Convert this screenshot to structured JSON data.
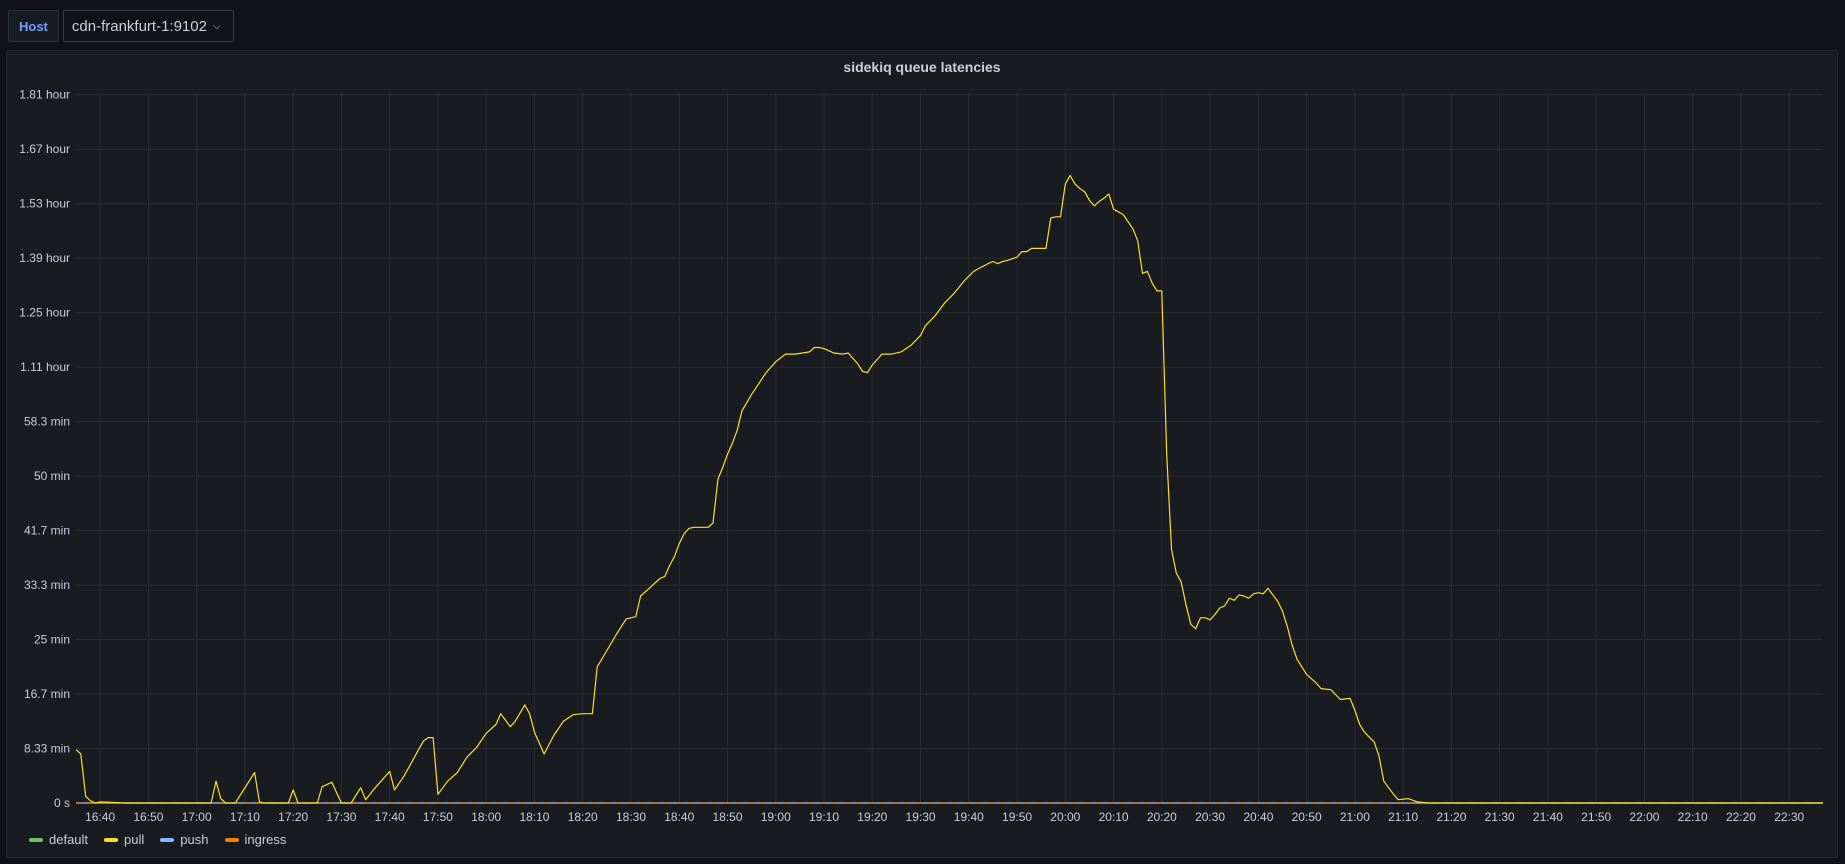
{
  "variables": {
    "label": "Host",
    "value": "cdn-frankfurt-1:9102"
  },
  "panel": {
    "title": "sidekiq queue latencies"
  },
  "legend": [
    {
      "name": "default",
      "color": "#73bf69"
    },
    {
      "name": "pull",
      "color": "#fade2a"
    },
    {
      "name": "push",
      "color": "#8ab8ff"
    },
    {
      "name": "ingress",
      "color": "#ff780a"
    }
  ],
  "chart_data": {
    "type": "line",
    "x_unit": "time (HH:MM)",
    "xlim": [
      "16:35",
      "22:37"
    ],
    "y_unit": "seconds",
    "ylim": [
      0,
      6516
    ],
    "yticks": [
      {
        "value": 0,
        "label": "0 s"
      },
      {
        "value": 500,
        "label": "8.33 min"
      },
      {
        "value": 1000,
        "label": "16.7 min"
      },
      {
        "value": 1500,
        "label": "25 min"
      },
      {
        "value": 2000,
        "label": "33.3 min"
      },
      {
        "value": 2500,
        "label": "41.7 min"
      },
      {
        "value": 3000,
        "label": "50 min"
      },
      {
        "value": 3500,
        "label": "58.3 min"
      },
      {
        "value": 4000,
        "label": "1.11 hour"
      },
      {
        "value": 4500,
        "label": "1.25 hour"
      },
      {
        "value": 5000,
        "label": "1.39 hour"
      },
      {
        "value": 5500,
        "label": "1.53 hour"
      },
      {
        "value": 6000,
        "label": "1.67 hour"
      },
      {
        "value": 6500,
        "label": "1.81 hour"
      }
    ],
    "xticks": [
      "16:40",
      "16:50",
      "17:00",
      "17:10",
      "17:20",
      "17:30",
      "17:40",
      "17:50",
      "18:00",
      "18:10",
      "18:20",
      "18:30",
      "18:40",
      "18:50",
      "19:00",
      "19:10",
      "19:20",
      "19:30",
      "19:40",
      "19:50",
      "20:00",
      "20:10",
      "20:20",
      "20:30",
      "20:40",
      "20:50",
      "21:00",
      "21:10",
      "21:20",
      "21:30",
      "21:40",
      "21:50",
      "22:00",
      "22:10",
      "22:20",
      "22:30"
    ],
    "grid": true,
    "legend_position": "bottom-left",
    "series": [
      {
        "name": "pull",
        "color": "#fade2a",
        "points": [
          [
            "16:35",
            490
          ],
          [
            "16:36",
            450
          ],
          [
            "16:37",
            60
          ],
          [
            "16:38",
            20
          ],
          [
            "16:39",
            0
          ],
          [
            "16:40",
            10
          ],
          [
            "16:45",
            0
          ],
          [
            "16:55",
            0
          ],
          [
            "17:03",
            0
          ],
          [
            "17:04",
            200
          ],
          [
            "17:05",
            40
          ],
          [
            "17:06",
            0
          ],
          [
            "17:08",
            0
          ],
          [
            "17:12",
            280
          ],
          [
            "17:13",
            10
          ],
          [
            "17:14",
            0
          ],
          [
            "17:19",
            0
          ],
          [
            "17:20",
            120
          ],
          [
            "17:21",
            0
          ],
          [
            "17:25",
            0
          ],
          [
            "17:26",
            150
          ],
          [
            "17:28",
            190
          ],
          [
            "17:30",
            0
          ],
          [
            "17:32",
            0
          ],
          [
            "17:34",
            140
          ],
          [
            "17:35",
            30
          ],
          [
            "17:37",
            140
          ],
          [
            "17:40",
            290
          ],
          [
            "17:41",
            120
          ],
          [
            "17:43",
            250
          ],
          [
            "17:46",
            490
          ],
          [
            "17:47",
            570
          ],
          [
            "17:48",
            600
          ],
          [
            "17:49",
            600
          ],
          [
            "17:50",
            80
          ],
          [
            "17:52",
            200
          ],
          [
            "17:54",
            280
          ],
          [
            "17:56",
            420
          ],
          [
            "17:58",
            510
          ],
          [
            "18:00",
            640
          ],
          [
            "18:02",
            720
          ],
          [
            "18:03",
            820
          ],
          [
            "18:05",
            700
          ],
          [
            "18:06",
            750
          ],
          [
            "18:08",
            900
          ],
          [
            "18:09",
            820
          ],
          [
            "18:10",
            650
          ],
          [
            "18:12",
            450
          ],
          [
            "18:14",
            620
          ],
          [
            "18:16",
            750
          ],
          [
            "18:18",
            810
          ],
          [
            "18:20",
            820
          ],
          [
            "18:21",
            820
          ],
          [
            "18:22",
            820
          ],
          [
            "18:23",
            1250
          ],
          [
            "18:25",
            1400
          ],
          [
            "18:27",
            1550
          ],
          [
            "18:29",
            1690
          ],
          [
            "18:31",
            1710
          ],
          [
            "18:32",
            1900
          ],
          [
            "18:34",
            1980
          ],
          [
            "18:36",
            2060
          ],
          [
            "18:37",
            2080
          ],
          [
            "18:38",
            2180
          ],
          [
            "18:39",
            2260
          ],
          [
            "18:40",
            2380
          ],
          [
            "18:41",
            2470
          ],
          [
            "18:42",
            2520
          ],
          [
            "18:43",
            2530
          ],
          [
            "18:44",
            2530
          ],
          [
            "18:45",
            2530
          ],
          [
            "18:46",
            2530
          ],
          [
            "18:47",
            2570
          ],
          [
            "18:48",
            2970
          ],
          [
            "18:49",
            3080
          ],
          [
            "18:50",
            3200
          ],
          [
            "18:51",
            3300
          ],
          [
            "18:52",
            3420
          ],
          [
            "18:53",
            3600
          ],
          [
            "18:55",
            3750
          ],
          [
            "18:58",
            3950
          ],
          [
            "19:00",
            4050
          ],
          [
            "19:02",
            4120
          ],
          [
            "19:04",
            4120
          ],
          [
            "19:07",
            4140
          ],
          [
            "19:08",
            4180
          ],
          [
            "19:09",
            4180
          ],
          [
            "19:10",
            4170
          ],
          [
            "19:12",
            4130
          ],
          [
            "19:14",
            4120
          ],
          [
            "19:15",
            4130
          ],
          [
            "19:17",
            4030
          ],
          [
            "19:18",
            3960
          ],
          [
            "19:19",
            3950
          ],
          [
            "19:20",
            4020
          ],
          [
            "19:22",
            4120
          ],
          [
            "19:24",
            4120
          ],
          [
            "19:26",
            4140
          ],
          [
            "19:28",
            4200
          ],
          [
            "19:30",
            4290
          ],
          [
            "19:31",
            4380
          ],
          [
            "19:33",
            4470
          ],
          [
            "19:35",
            4590
          ],
          [
            "19:37",
            4680
          ],
          [
            "19:39",
            4790
          ],
          [
            "19:41",
            4880
          ],
          [
            "19:44",
            4950
          ],
          [
            "19:45",
            4970
          ],
          [
            "19:46",
            4950
          ],
          [
            "19:47",
            4970
          ],
          [
            "19:48",
            4980
          ],
          [
            "19:50",
            5010
          ],
          [
            "19:51",
            5060
          ],
          [
            "19:52",
            5060
          ],
          [
            "19:53",
            5090
          ],
          [
            "19:56",
            5090
          ],
          [
            "19:57",
            5370
          ],
          [
            "19:58",
            5380
          ],
          [
            "19:59",
            5380
          ],
          [
            "20:00",
            5680
          ],
          [
            "20:01",
            5760
          ],
          [
            "20:02",
            5680
          ],
          [
            "20:03",
            5640
          ],
          [
            "20:04",
            5610
          ],
          [
            "20:05",
            5530
          ],
          [
            "20:06",
            5480
          ],
          [
            "20:07",
            5520
          ],
          [
            "20:08",
            5550
          ],
          [
            "20:09",
            5590
          ],
          [
            "20:10",
            5450
          ],
          [
            "20:12",
            5400
          ],
          [
            "20:14",
            5270
          ],
          [
            "20:15",
            5160
          ],
          [
            "20:16",
            4860
          ],
          [
            "20:17",
            4880
          ],
          [
            "20:18",
            4770
          ],
          [
            "20:19",
            4700
          ],
          [
            "20:20",
            4700
          ],
          [
            "20:21",
            3200
          ],
          [
            "20:22",
            2330
          ],
          [
            "20:23",
            2110
          ],
          [
            "20:24",
            2030
          ],
          [
            "20:25",
            1820
          ],
          [
            "20:26",
            1640
          ],
          [
            "20:27",
            1600
          ],
          [
            "20:28",
            1700
          ],
          [
            "20:29",
            1700
          ],
          [
            "20:30",
            1680
          ],
          [
            "20:31",
            1730
          ],
          [
            "20:32",
            1790
          ],
          [
            "20:33",
            1810
          ],
          [
            "20:34",
            1880
          ],
          [
            "20:35",
            1860
          ],
          [
            "20:36",
            1910
          ],
          [
            "20:37",
            1900
          ],
          [
            "20:38",
            1880
          ],
          [
            "20:39",
            1920
          ],
          [
            "20:40",
            1930
          ],
          [
            "20:41",
            1920
          ],
          [
            "20:42",
            1970
          ],
          [
            "20:43",
            1910
          ],
          [
            "20:44",
            1850
          ],
          [
            "20:45",
            1760
          ],
          [
            "20:46",
            1620
          ],
          [
            "20:47",
            1450
          ],
          [
            "20:48",
            1320
          ],
          [
            "20:50",
            1180
          ],
          [
            "20:52",
            1100
          ],
          [
            "20:53",
            1050
          ],
          [
            "20:55",
            1040
          ],
          [
            "20:57",
            950
          ],
          [
            "20:59",
            960
          ],
          [
            "21:00",
            850
          ],
          [
            "21:01",
            720
          ],
          [
            "21:02",
            650
          ],
          [
            "21:04",
            560
          ],
          [
            "21:05",
            430
          ],
          [
            "21:06",
            200
          ],
          [
            "21:08",
            80
          ],
          [
            "21:09",
            30
          ],
          [
            "21:11",
            40
          ],
          [
            "21:13",
            10
          ],
          [
            "21:15",
            0
          ],
          [
            "22:37",
            0
          ]
        ]
      },
      {
        "name": "default",
        "color": "#73bf69",
        "points": [
          [
            "16:35",
            0
          ],
          [
            "22:37",
            0
          ]
        ]
      },
      {
        "name": "push",
        "color": "#8ab8ff",
        "points": [
          [
            "16:35",
            0
          ],
          [
            "22:37",
            0
          ]
        ]
      },
      {
        "name": "ingress",
        "color": "#ff780a",
        "points": [
          [
            "16:35",
            0
          ],
          [
            "22:37",
            0
          ]
        ]
      }
    ]
  }
}
